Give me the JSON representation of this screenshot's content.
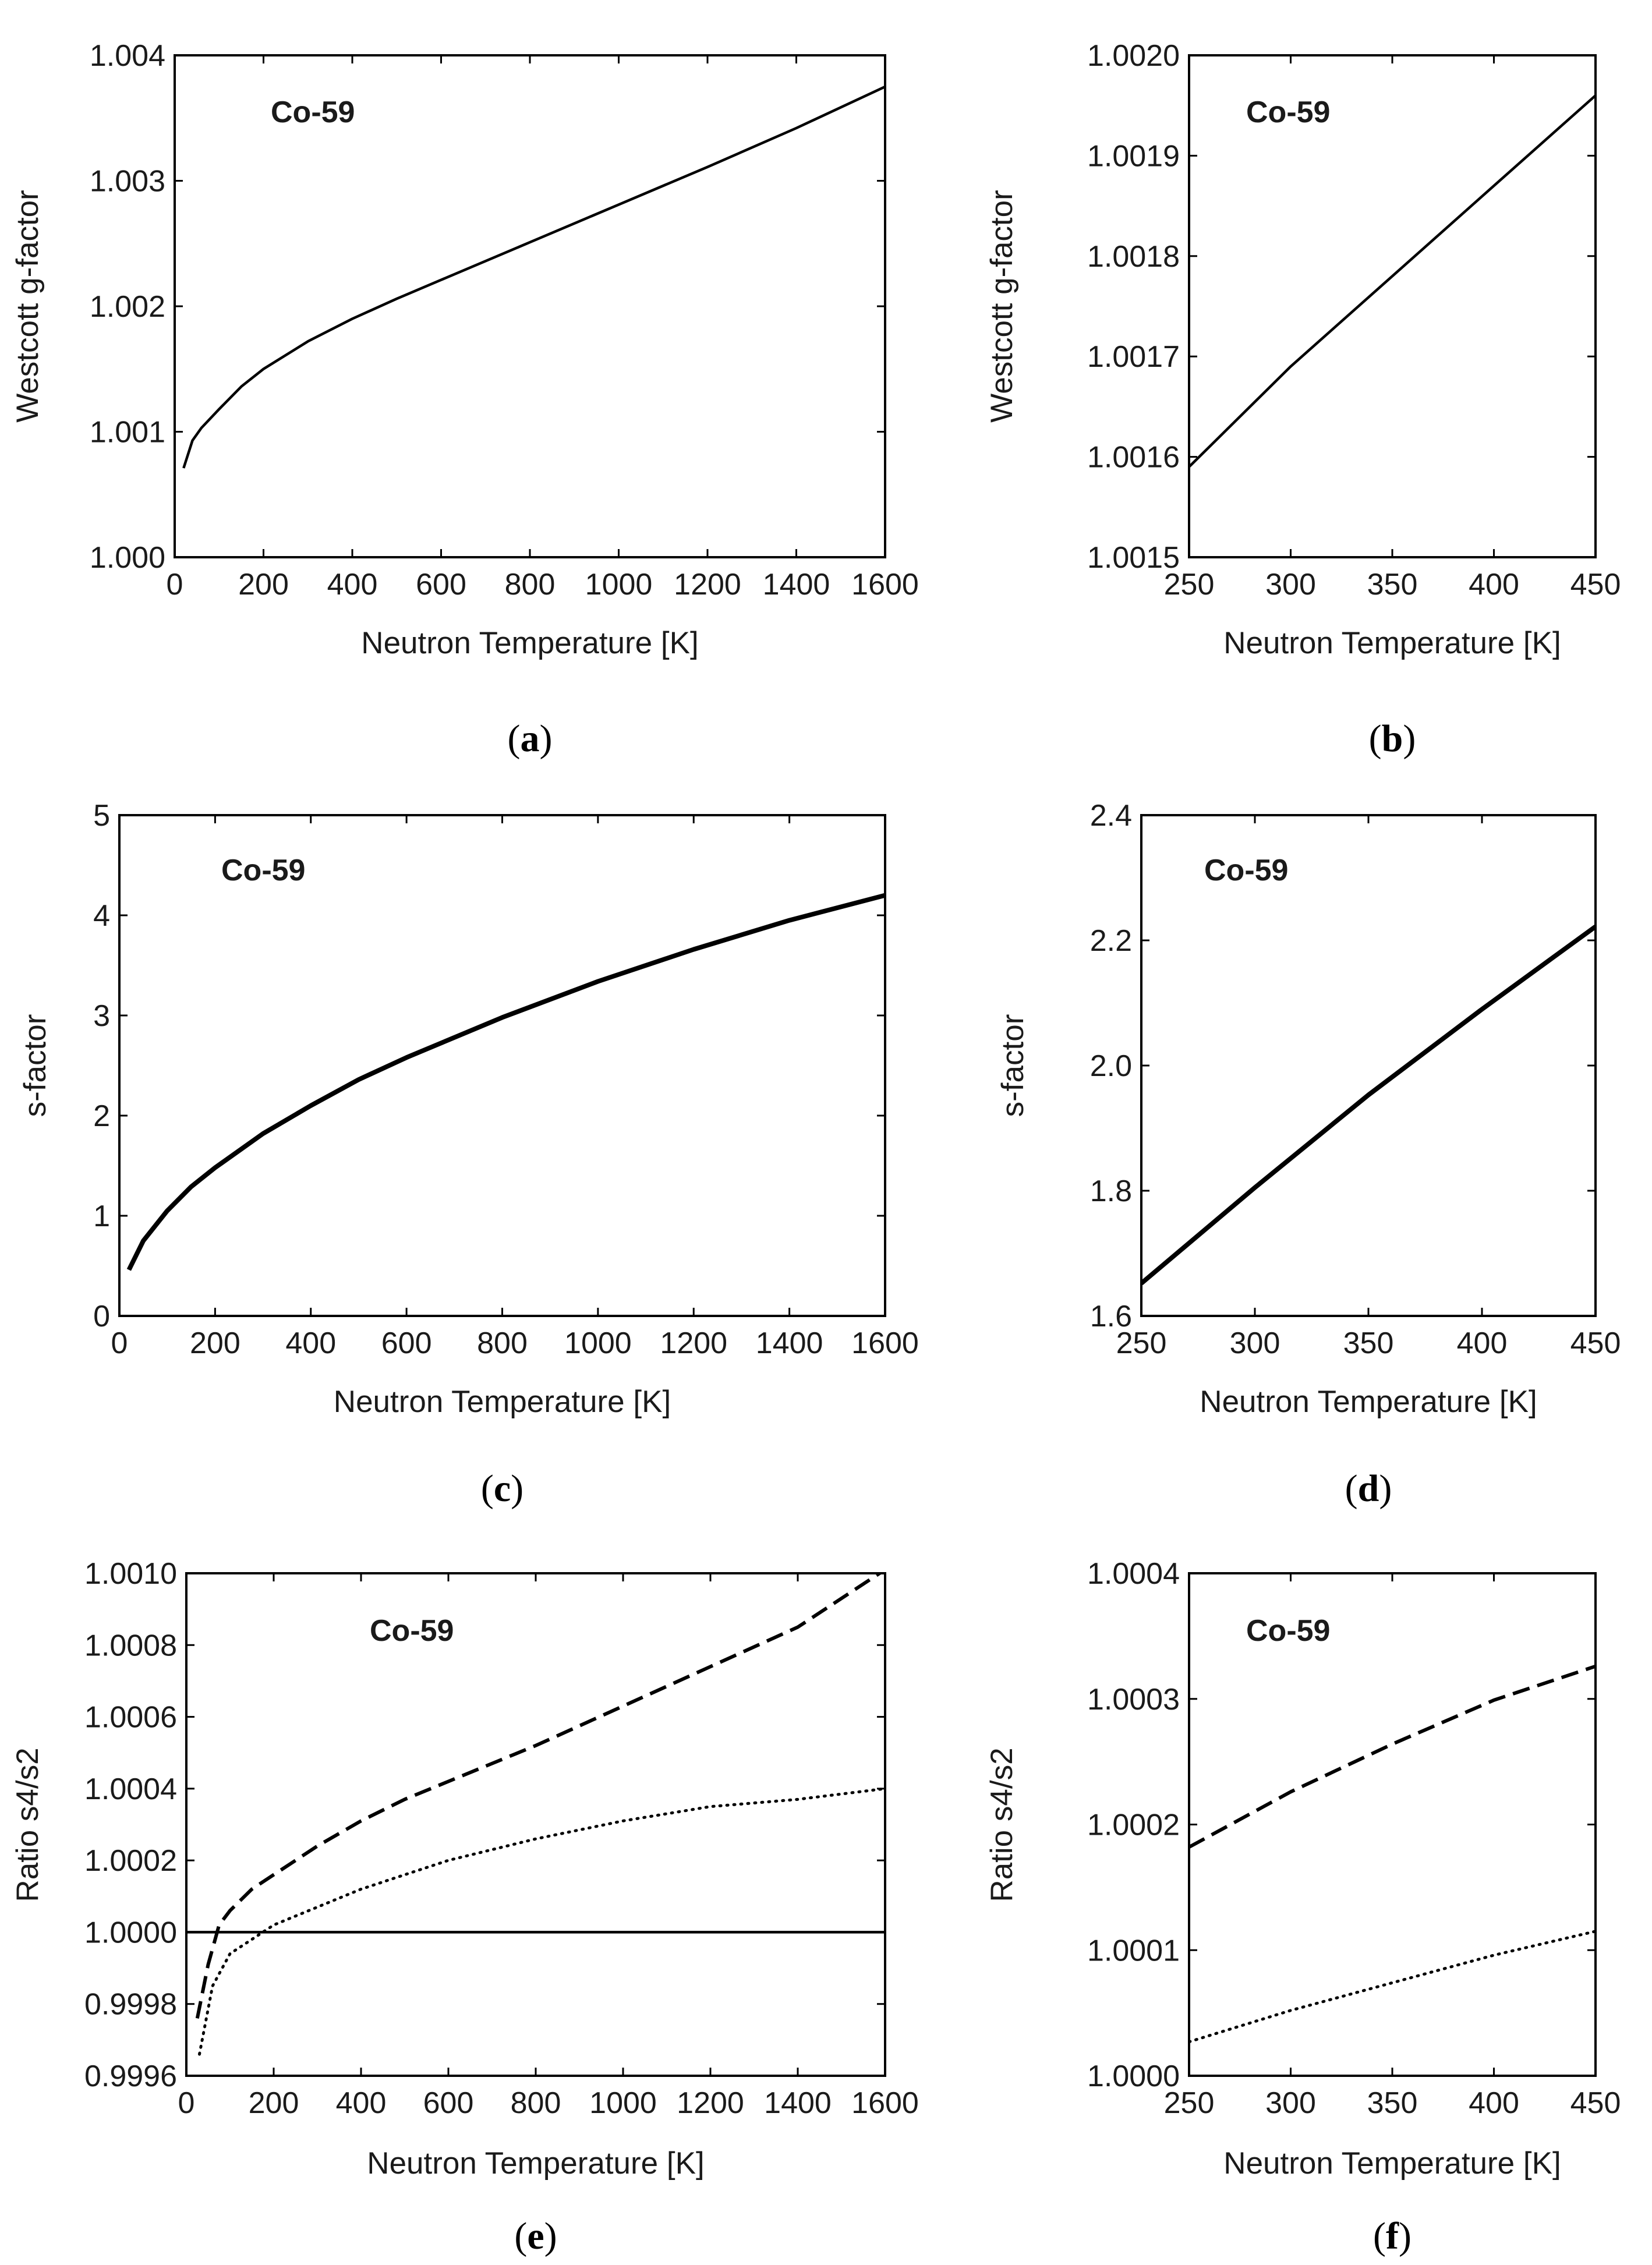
{
  "chart_data": [
    {
      "panel": "a",
      "type": "line",
      "annotation": "Co-59",
      "xlabel": "Neutron Temperature [K]",
      "ylabel": "Westcott g-factor",
      "xlim": [
        0,
        1600
      ],
      "ylim": [
        1.0,
        1.004
      ],
      "xticks": [
        0,
        200,
        400,
        600,
        800,
        1000,
        1200,
        1400,
        1600
      ],
      "xtick_labels": [
        "0",
        "200",
        "400",
        "600",
        "800",
        "1000",
        "1200",
        "1400",
        "1600"
      ],
      "yticks": [
        1.0,
        1.001,
        1.002,
        1.003,
        1.004
      ],
      "ytick_labels": [
        "1.000",
        "1.001",
        "1.002",
        "1.003",
        "1.004"
      ],
      "series": [
        {
          "name": "g-factor",
          "style": "solid",
          "x": [
            20,
            40,
            60,
            100,
            150,
            200,
            300,
            400,
            500,
            600,
            800,
            1000,
            1200,
            1400,
            1600
          ],
          "y": [
            1.00071,
            1.00093,
            1.00103,
            1.00118,
            1.00136,
            1.0015,
            1.00172,
            1.0019,
            1.00206,
            1.00221,
            1.00251,
            1.00281,
            1.00311,
            1.00342,
            1.00375
          ]
        }
      ]
    },
    {
      "panel": "b",
      "type": "line",
      "annotation": "Co-59",
      "xlabel": "Neutron Temperature [K]",
      "ylabel": "Westcott g-factor",
      "xlim": [
        250,
        450
      ],
      "ylim": [
        1.0015,
        1.002
      ],
      "xticks": [
        250,
        300,
        350,
        400,
        450
      ],
      "xtick_labels": [
        "250",
        "300",
        "350",
        "400",
        "450"
      ],
      "yticks": [
        1.0015,
        1.0016,
        1.0017,
        1.0018,
        1.0019,
        1.002
      ],
      "ytick_labels": [
        "1.0015",
        "1.0016",
        "1.0017",
        "1.0018",
        "1.0019",
        "1.0020"
      ],
      "series": [
        {
          "name": "g-factor",
          "style": "solid",
          "x": [
            250,
            300,
            350,
            400,
            450
          ],
          "y": [
            1.00159,
            1.00169,
            1.00178,
            1.00187,
            1.00196
          ]
        }
      ]
    },
    {
      "panel": "c",
      "type": "line",
      "annotation": "Co-59",
      "xlabel": "Neutron Temperature [K]",
      "ylabel": "s-factor",
      "xlim": [
        0,
        1600
      ],
      "ylim": [
        0,
        5
      ],
      "xticks": [
        0,
        200,
        400,
        600,
        800,
        1000,
        1200,
        1400,
        1600
      ],
      "xtick_labels": [
        "0",
        "200",
        "400",
        "600",
        "800",
        "1000",
        "1200",
        "1400",
        "1600"
      ],
      "yticks": [
        0,
        1,
        2,
        3,
        4,
        5
      ],
      "ytick_labels": [
        "0",
        "1",
        "2",
        "3",
        "4",
        "5"
      ],
      "series": [
        {
          "name": "s-factor",
          "style": "thick",
          "x": [
            20,
            50,
            100,
            150,
            200,
            300,
            400,
            500,
            600,
            800,
            1000,
            1200,
            1400,
            1600
          ],
          "y": [
            0.46,
            0.75,
            1.05,
            1.29,
            1.48,
            1.82,
            2.1,
            2.36,
            2.58,
            2.98,
            3.34,
            3.66,
            3.95,
            4.2
          ]
        }
      ]
    },
    {
      "panel": "d",
      "type": "line",
      "annotation": "Co-59",
      "xlabel": "Neutron Temperature [K]",
      "ylabel": "s-factor",
      "xlim": [
        250,
        450
      ],
      "ylim": [
        1.6,
        2.4
      ],
      "xticks": [
        250,
        300,
        350,
        400,
        450
      ],
      "xtick_labels": [
        "250",
        "300",
        "350",
        "400",
        "450"
      ],
      "yticks": [
        1.6,
        1.8,
        2.0,
        2.2,
        2.4
      ],
      "ytick_labels": [
        "1.6",
        "1.8",
        "2.0",
        "2.2",
        "2.4"
      ],
      "series": [
        {
          "name": "s-factor",
          "style": "thick",
          "x": [
            250,
            300,
            350,
            400,
            450
          ],
          "y": [
            1.652,
            1.805,
            1.953,
            2.09,
            2.222
          ]
        }
      ]
    },
    {
      "panel": "e",
      "type": "line",
      "annotation": "Co-59",
      "xlabel": "Neutron Temperature [K]",
      "ylabel": "Ratio s4/s2",
      "xlim": [
        0,
        1600
      ],
      "ylim": [
        0.9996,
        1.001
      ],
      "xticks": [
        0,
        200,
        400,
        600,
        800,
        1000,
        1200,
        1400,
        1600
      ],
      "xtick_labels": [
        "0",
        "200",
        "400",
        "600",
        "800",
        "1000",
        "1200",
        "1400",
        "1600"
      ],
      "yticks": [
        0.9996,
        0.9998,
        1.0,
        1.0002,
        1.0004,
        1.0006,
        1.0008,
        1.001
      ],
      "ytick_labels": [
        "0.9996",
        "0.9998",
        "1.0000",
        "1.0002",
        "1.0004",
        "1.0006",
        "1.0008",
        "1.0010"
      ],
      "series": [
        {
          "name": "reference",
          "style": "solid",
          "x": [
            0,
            1600
          ],
          "y": [
            1.0,
            1.0
          ]
        },
        {
          "name": "dashed",
          "style": "dashed",
          "x": [
            25,
            50,
            75,
            100,
            150,
            200,
            300,
            400,
            500,
            600,
            800,
            1000,
            1200,
            1400,
            1600
          ],
          "y": [
            0.99976,
            0.99991,
            1.00002,
            1.00006,
            1.00012,
            1.00016,
            1.00024,
            1.00031,
            1.00037,
            1.00042,
            1.00052,
            1.00063,
            1.00074,
            1.00085,
            1.00101
          ]
        },
        {
          "name": "dotted",
          "style": "dotted",
          "x": [
            30,
            60,
            100,
            150,
            200,
            300,
            400,
            600,
            800,
            1000,
            1200,
            1400,
            1600
          ],
          "y": [
            0.99966,
            0.99985,
            0.99994,
            0.99998,
            1.00002,
            1.00007,
            1.00012,
            1.0002,
            1.00026,
            1.00031,
            1.00035,
            1.00037,
            1.0004
          ]
        }
      ]
    },
    {
      "panel": "f",
      "type": "line",
      "annotation": "Co-59",
      "xlabel": "Neutron Temperature [K]",
      "ylabel": "Ratio s4/s2",
      "xlim": [
        250,
        450
      ],
      "ylim": [
        1.0,
        1.0004
      ],
      "xticks": [
        250,
        300,
        350,
        400,
        450
      ],
      "xtick_labels": [
        "250",
        "300",
        "350",
        "400",
        "450"
      ],
      "yticks": [
        1.0,
        1.0001,
        1.0002,
        1.0003,
        1.0004
      ],
      "ytick_labels": [
        "1.0000",
        "1.0001",
        "1.0002",
        "1.0003",
        "1.0004"
      ],
      "series": [
        {
          "name": "dashed",
          "style": "dashed",
          "x": [
            250,
            300,
            350,
            400,
            450
          ],
          "y": [
            1.000182,
            1.000226,
            1.000264,
            1.000299,
            1.000326
          ]
        },
        {
          "name": "dotted",
          "style": "dotted",
          "x": [
            250,
            300,
            350,
            400,
            450
          ],
          "y": [
            1.000027,
            1.000052,
            1.000074,
            1.000096,
            1.000115
          ]
        }
      ]
    }
  ],
  "panel_labels": [
    {
      "open": "(",
      "letter": "a",
      "close": ")"
    },
    {
      "open": "(",
      "letter": "b",
      "close": ")"
    },
    {
      "open": "(",
      "letter": "c",
      "close": ")"
    },
    {
      "open": "(",
      "letter": "d",
      "close": ")"
    },
    {
      "open": "(",
      "letter": "e",
      "close": ")"
    },
    {
      "open": "(",
      "letter": "f",
      "close": ")"
    }
  ]
}
